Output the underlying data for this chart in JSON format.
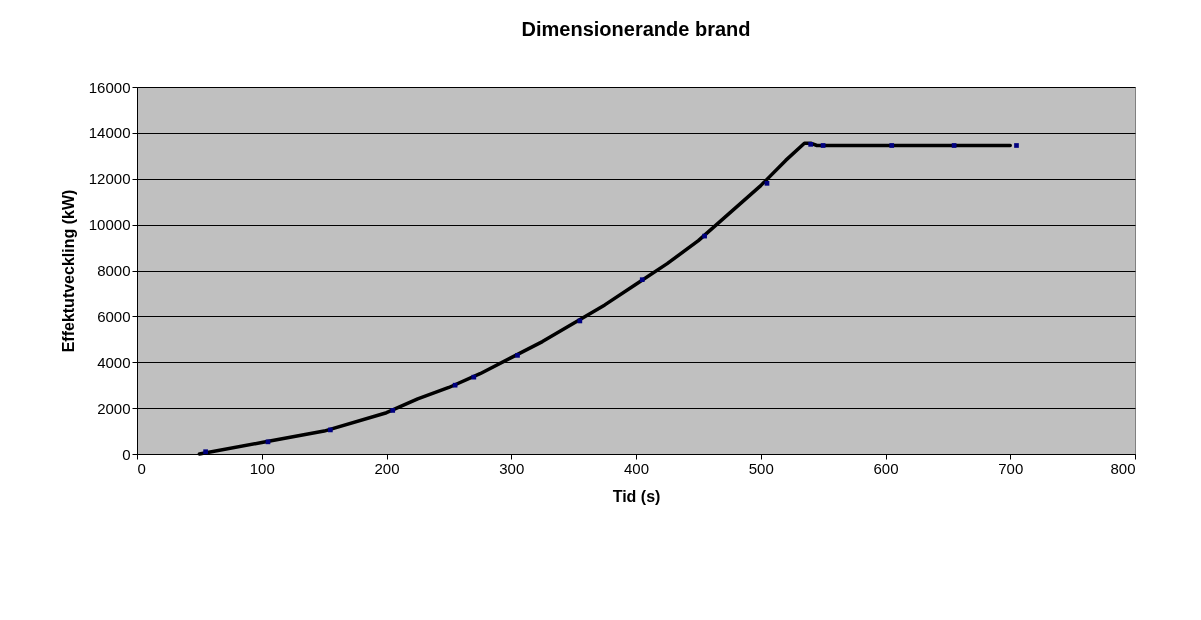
{
  "chart_data": {
    "type": "line",
    "title": "Dimensionerande brand",
    "xlabel": "Tid (s)",
    "ylabel": "Effektutveckling (kW)",
    "xlim": [
      0,
      800
    ],
    "xticks": [
      0,
      100,
      200,
      300,
      400,
      500,
      600,
      700,
      800
    ],
    "ylim": [
      0,
      16000
    ],
    "yticks": [
      0,
      2000,
      4000,
      6000,
      8000,
      10000,
      12000,
      14000,
      16000
    ],
    "grid": "y",
    "series": [
      {
        "color": "#000000",
        "x": [
          50,
          100,
          150,
          200,
          225,
          250,
          275,
          300,
          325,
          350,
          375,
          400,
          425,
          450,
          475,
          500,
          520,
          535,
          540,
          545,
          700
        ],
        "values": [
          0,
          500,
          1000,
          1800,
          2400,
          2900,
          3500,
          4200,
          4900,
          5700,
          6500,
          7400,
          8300,
          9300,
          10500,
          11700,
          12800,
          13550,
          13550,
          13450,
          13450
        ]
      },
      {
        "type": "scatter",
        "color": "#000080",
        "marker": "square",
        "x": [
          55,
          105,
          155,
          205,
          255,
          270,
          305,
          355,
          405,
          455,
          505,
          540,
          550,
          605,
          655,
          705
        ],
        "values": [
          100,
          530,
          1050,
          1900,
          3000,
          3350,
          4300,
          5800,
          7600,
          9500,
          11800,
          13500,
          13450,
          13450,
          13450,
          13450
        ]
      }
    ]
  }
}
